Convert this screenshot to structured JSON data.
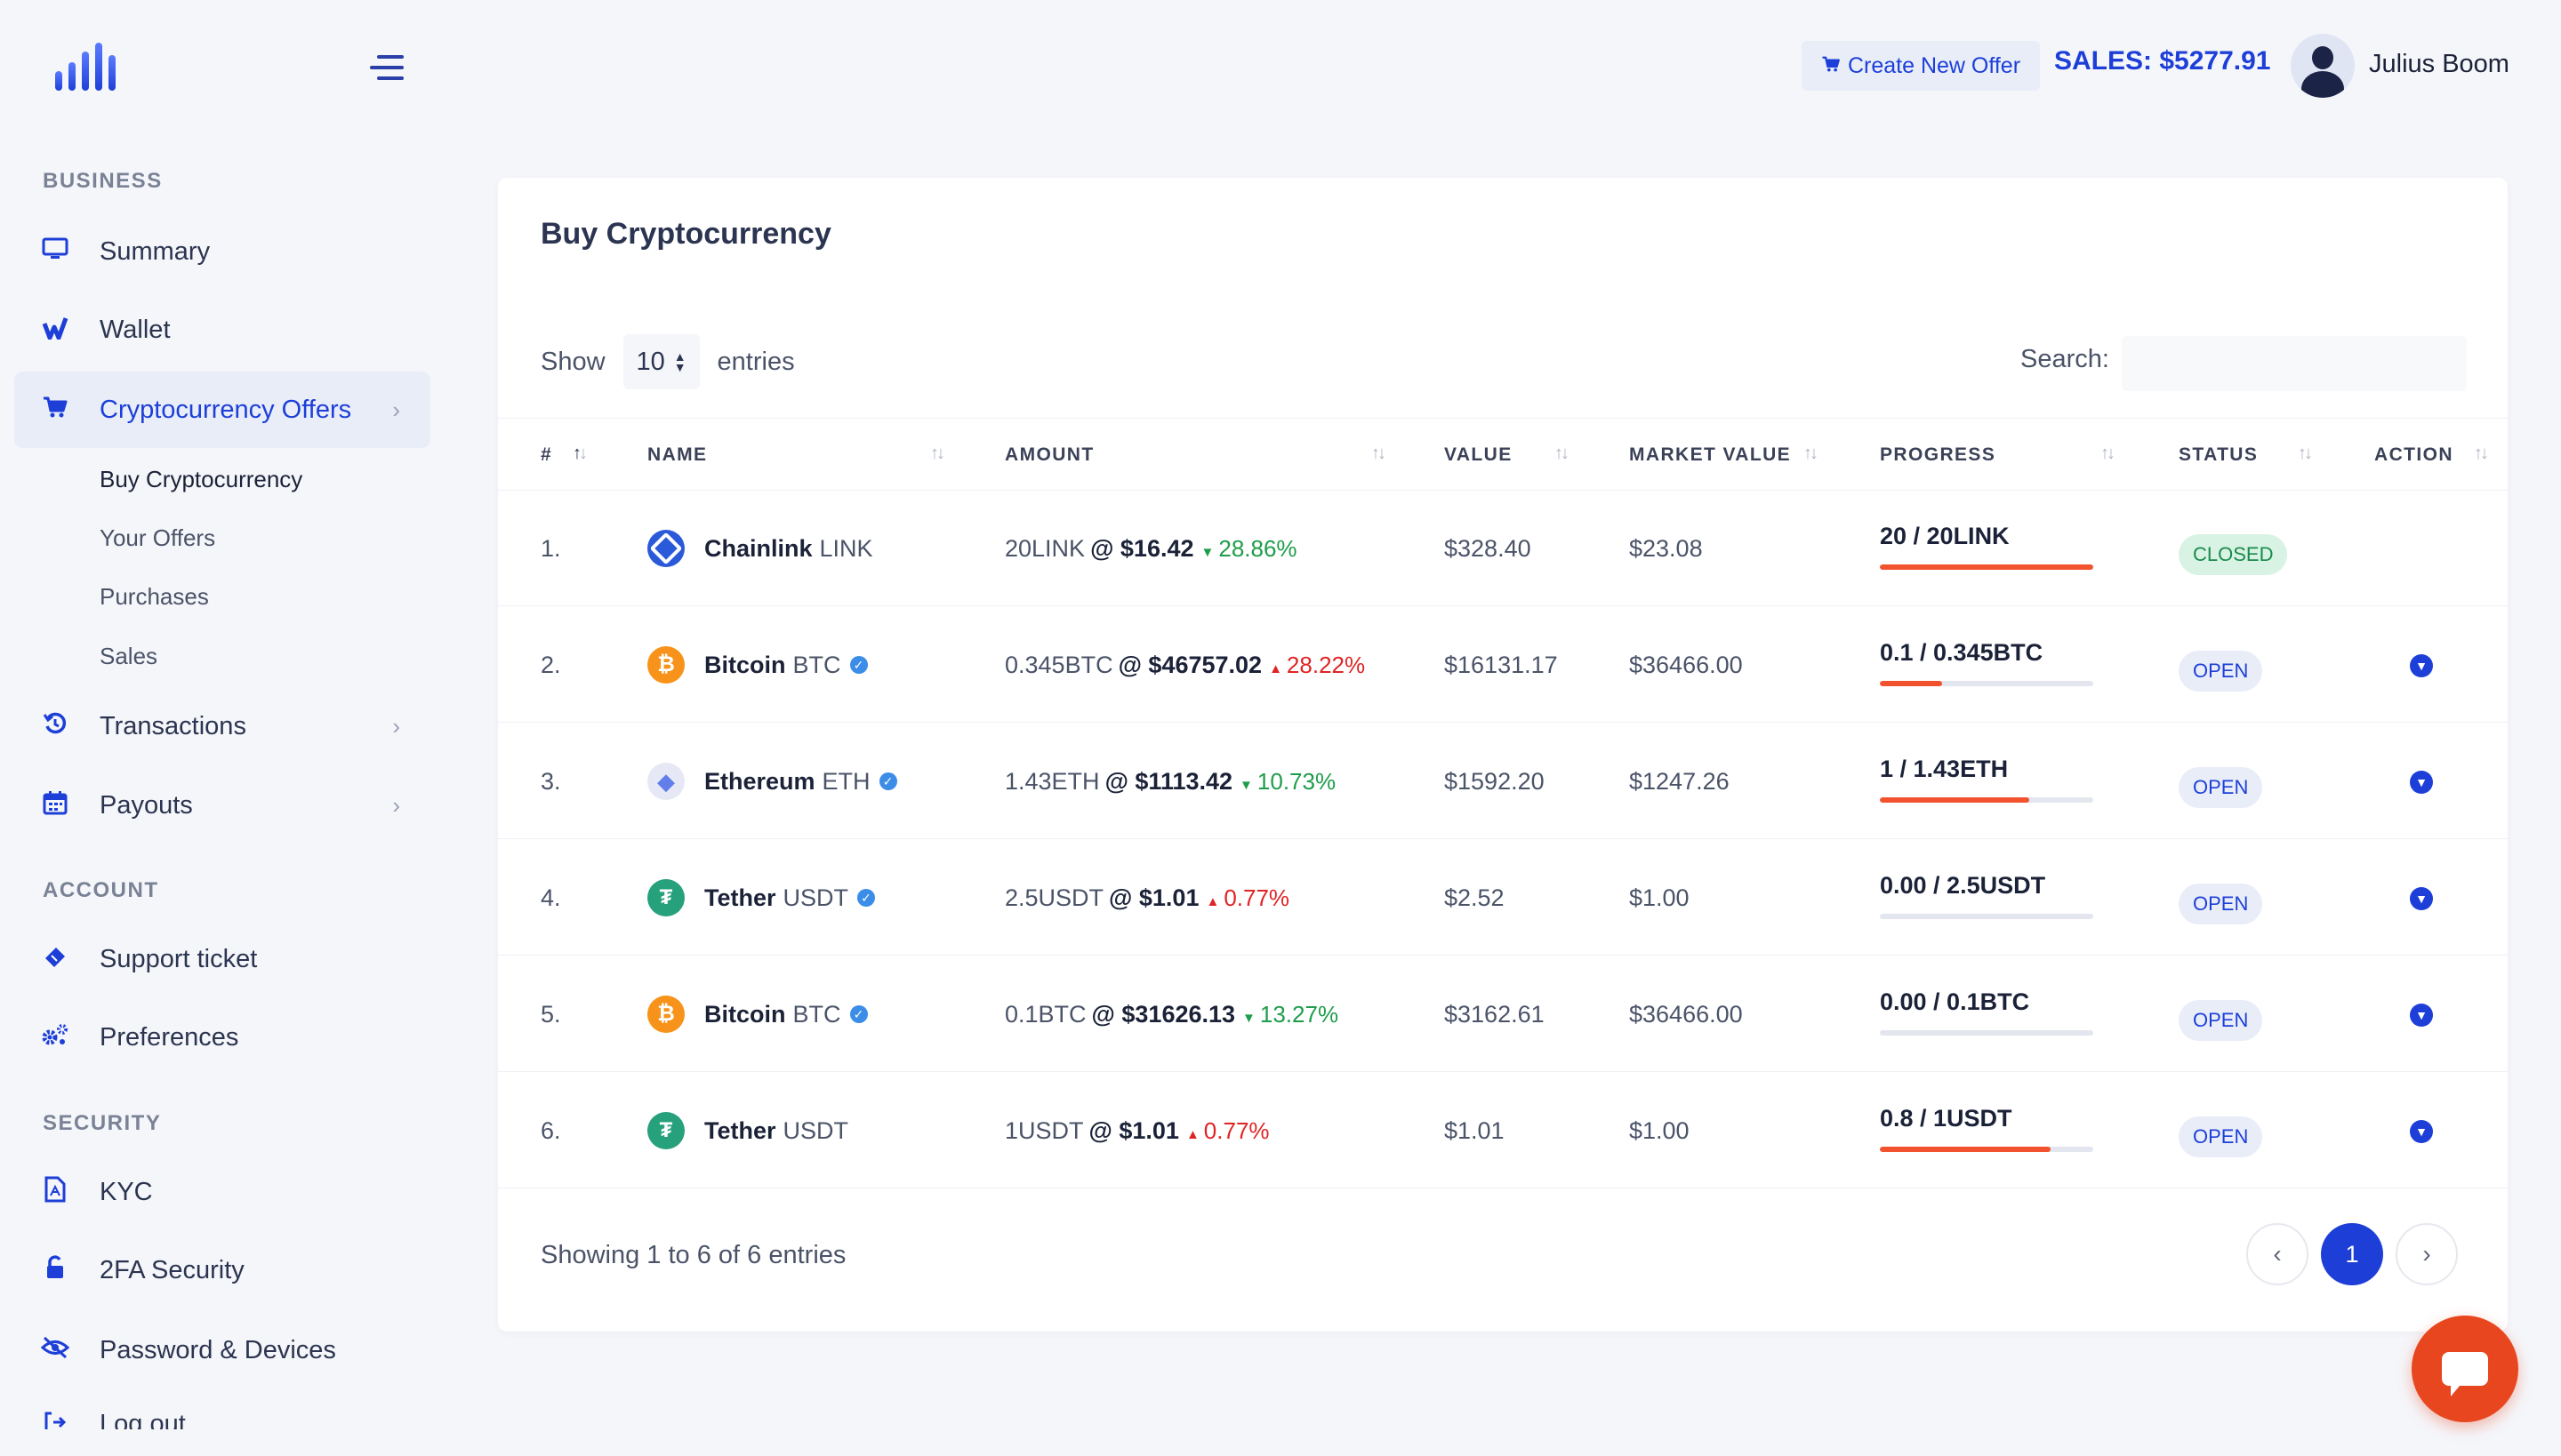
{
  "sidebar": {
    "sections": {
      "business": "BUSINESS",
      "account": "ACCOUNT",
      "security": "SECURITY"
    },
    "items": {
      "summary": {
        "label": "Summary",
        "icon": "monitor-icon"
      },
      "wallet": {
        "label": "Wallet",
        "icon": "wallet-icon"
      },
      "crypto_offers": {
        "label": "Cryptocurrency Offers",
        "icon": "cart-icon"
      },
      "transactions": {
        "label": "Transactions",
        "icon": "history-icon"
      },
      "payouts": {
        "label": "Payouts",
        "icon": "calendar-icon"
      },
      "support": {
        "label": "Support ticket",
        "icon": "ticket-icon"
      },
      "preferences": {
        "label": "Preferences",
        "icon": "gears-icon"
      },
      "kyc": {
        "label": "KYC",
        "icon": "document-icon"
      },
      "twofa": {
        "label": "2FA Security",
        "icon": "lock-icon"
      },
      "password": {
        "label": "Password & Devices",
        "icon": "eye-slash-icon"
      },
      "logout": {
        "label": "Log out",
        "icon": "logout-icon"
      }
    },
    "subitems": {
      "buy": "Buy Cryptocurrency",
      "your_offers": "Your Offers",
      "purchases": "Purchases",
      "sales": "Sales"
    }
  },
  "header": {
    "create_offer": "Create New Offer",
    "sales": "SALES: $5277.91",
    "user_name": "Julius Boom"
  },
  "card": {
    "title": "Buy Cryptocurrency",
    "show_label": "Show",
    "entries_label": "entries",
    "page_length": "10",
    "search_label": "Search:",
    "search_value": "",
    "footer_info": "Showing 1 to 6 of 6 entries",
    "current_page": "1"
  },
  "table": {
    "headers": {
      "num": "#",
      "name": "NAME",
      "amount": "AMOUNT",
      "value": "VALUE",
      "market_value": "MARKET VALUE",
      "progress": "PROGRESS",
      "status": "STATUS",
      "action": "ACTION"
    },
    "rows": [
      {
        "num": "1.",
        "coin": "Chainlink",
        "symbol": "LINK",
        "verified": false,
        "amount": "20LINK",
        "price": "$16.42",
        "change": "28.86%",
        "direction": "down",
        "value": "$328.40",
        "market_value": "$23.08",
        "progress_text": "20 / 20LINK",
        "progress": 1.0,
        "status": "CLOSED",
        "has_action": false
      },
      {
        "num": "2.",
        "coin": "Bitcoin",
        "symbol": "BTC",
        "verified": true,
        "amount": "0.345BTC",
        "price": "$46757.02",
        "change": "28.22%",
        "direction": "up",
        "value": "$16131.17",
        "market_value": "$36466.00",
        "progress_text": "0.1 / 0.345BTC",
        "progress": 0.29,
        "status": "OPEN",
        "has_action": true
      },
      {
        "num": "3.",
        "coin": "Ethereum",
        "symbol": "ETH",
        "verified": true,
        "amount": "1.43ETH",
        "price": "$1113.42",
        "change": "10.73%",
        "direction": "down",
        "value": "$1592.20",
        "market_value": "$1247.26",
        "progress_text": "1 / 1.43ETH",
        "progress": 0.7,
        "status": "OPEN",
        "has_action": true
      },
      {
        "num": "4.",
        "coin": "Tether",
        "symbol": "USDT",
        "verified": true,
        "amount": "2.5USDT",
        "price": "$1.01",
        "change": "0.77%",
        "direction": "up",
        "value": "$2.52",
        "market_value": "$1.00",
        "progress_text": "0.00 / 2.5USDT",
        "progress": 0,
        "status": "OPEN",
        "has_action": true
      },
      {
        "num": "5.",
        "coin": "Bitcoin",
        "symbol": "BTC",
        "verified": true,
        "amount": "0.1BTC",
        "price": "$31626.13",
        "change": "13.27%",
        "direction": "down",
        "value": "$3162.61",
        "market_value": "$36466.00",
        "progress_text": "0.00 / 0.1BTC",
        "progress": 0,
        "status": "OPEN",
        "has_action": true
      },
      {
        "num": "6.",
        "coin": "Tether",
        "symbol": "USDT",
        "verified": false,
        "amount": "1USDT",
        "price": "$1.01",
        "change": "0.77%",
        "direction": "up",
        "value": "$1.01",
        "market_value": "$1.00",
        "progress_text": "0.8 / 1USDT",
        "progress": 0.8,
        "status": "OPEN",
        "has_action": true
      }
    ]
  },
  "colors": {
    "accent": "#1d3fd8",
    "progress_fill": "#f2522e",
    "change_down": "#1e9d4a",
    "change_up": "#e02424",
    "chat_button": "#e8461e"
  }
}
